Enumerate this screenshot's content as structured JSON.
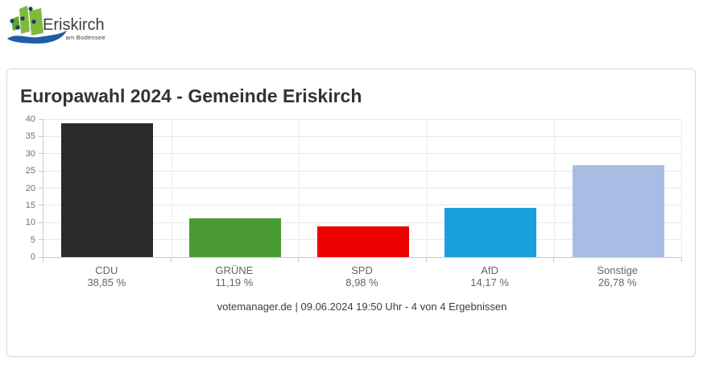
{
  "header": {
    "logo": {
      "name": "Eriskirch",
      "subtitle": "am Bodensee",
      "colors": {
        "green": "#7fba3d",
        "green_dark": "#63a532",
        "dot_navy": "#1c3c6e",
        "wave_blue": "#1e5da8"
      }
    }
  },
  "card": {
    "title": "Europawahl 2024 - Gemeinde Eriskirch",
    "source_line": "votemanager.de | 09.06.2024 19:50 Uhr - 4 von 4 Ergebnissen"
  },
  "chart_data": {
    "type": "bar",
    "title": "Europawahl 2024 - Gemeinde Eriskirch",
    "categories": [
      "CDU",
      "GRÜNE",
      "SPD",
      "AfD",
      "Sonstige"
    ],
    "values": [
      38.85,
      11.19,
      8.98,
      14.17,
      26.78
    ],
    "value_labels": [
      "38,85 %",
      "11,19 %",
      "8,98 %",
      "14,17 %",
      "26,78 %"
    ],
    "bar_colors": [
      "#2b2a29",
      "#4a9b33",
      "#ee0000",
      "#18a0dc",
      "#a9bce3"
    ],
    "ylim": [
      0,
      40
    ],
    "yticks": [
      0,
      5,
      10,
      15,
      20,
      25,
      30,
      35,
      40
    ],
    "grid": true,
    "legend": false,
    "xlabel": "",
    "ylabel": "",
    "source_line": "votemanager.de | 09.06.2024 19:50 Uhr - 4 von 4 Ergebnissen"
  }
}
